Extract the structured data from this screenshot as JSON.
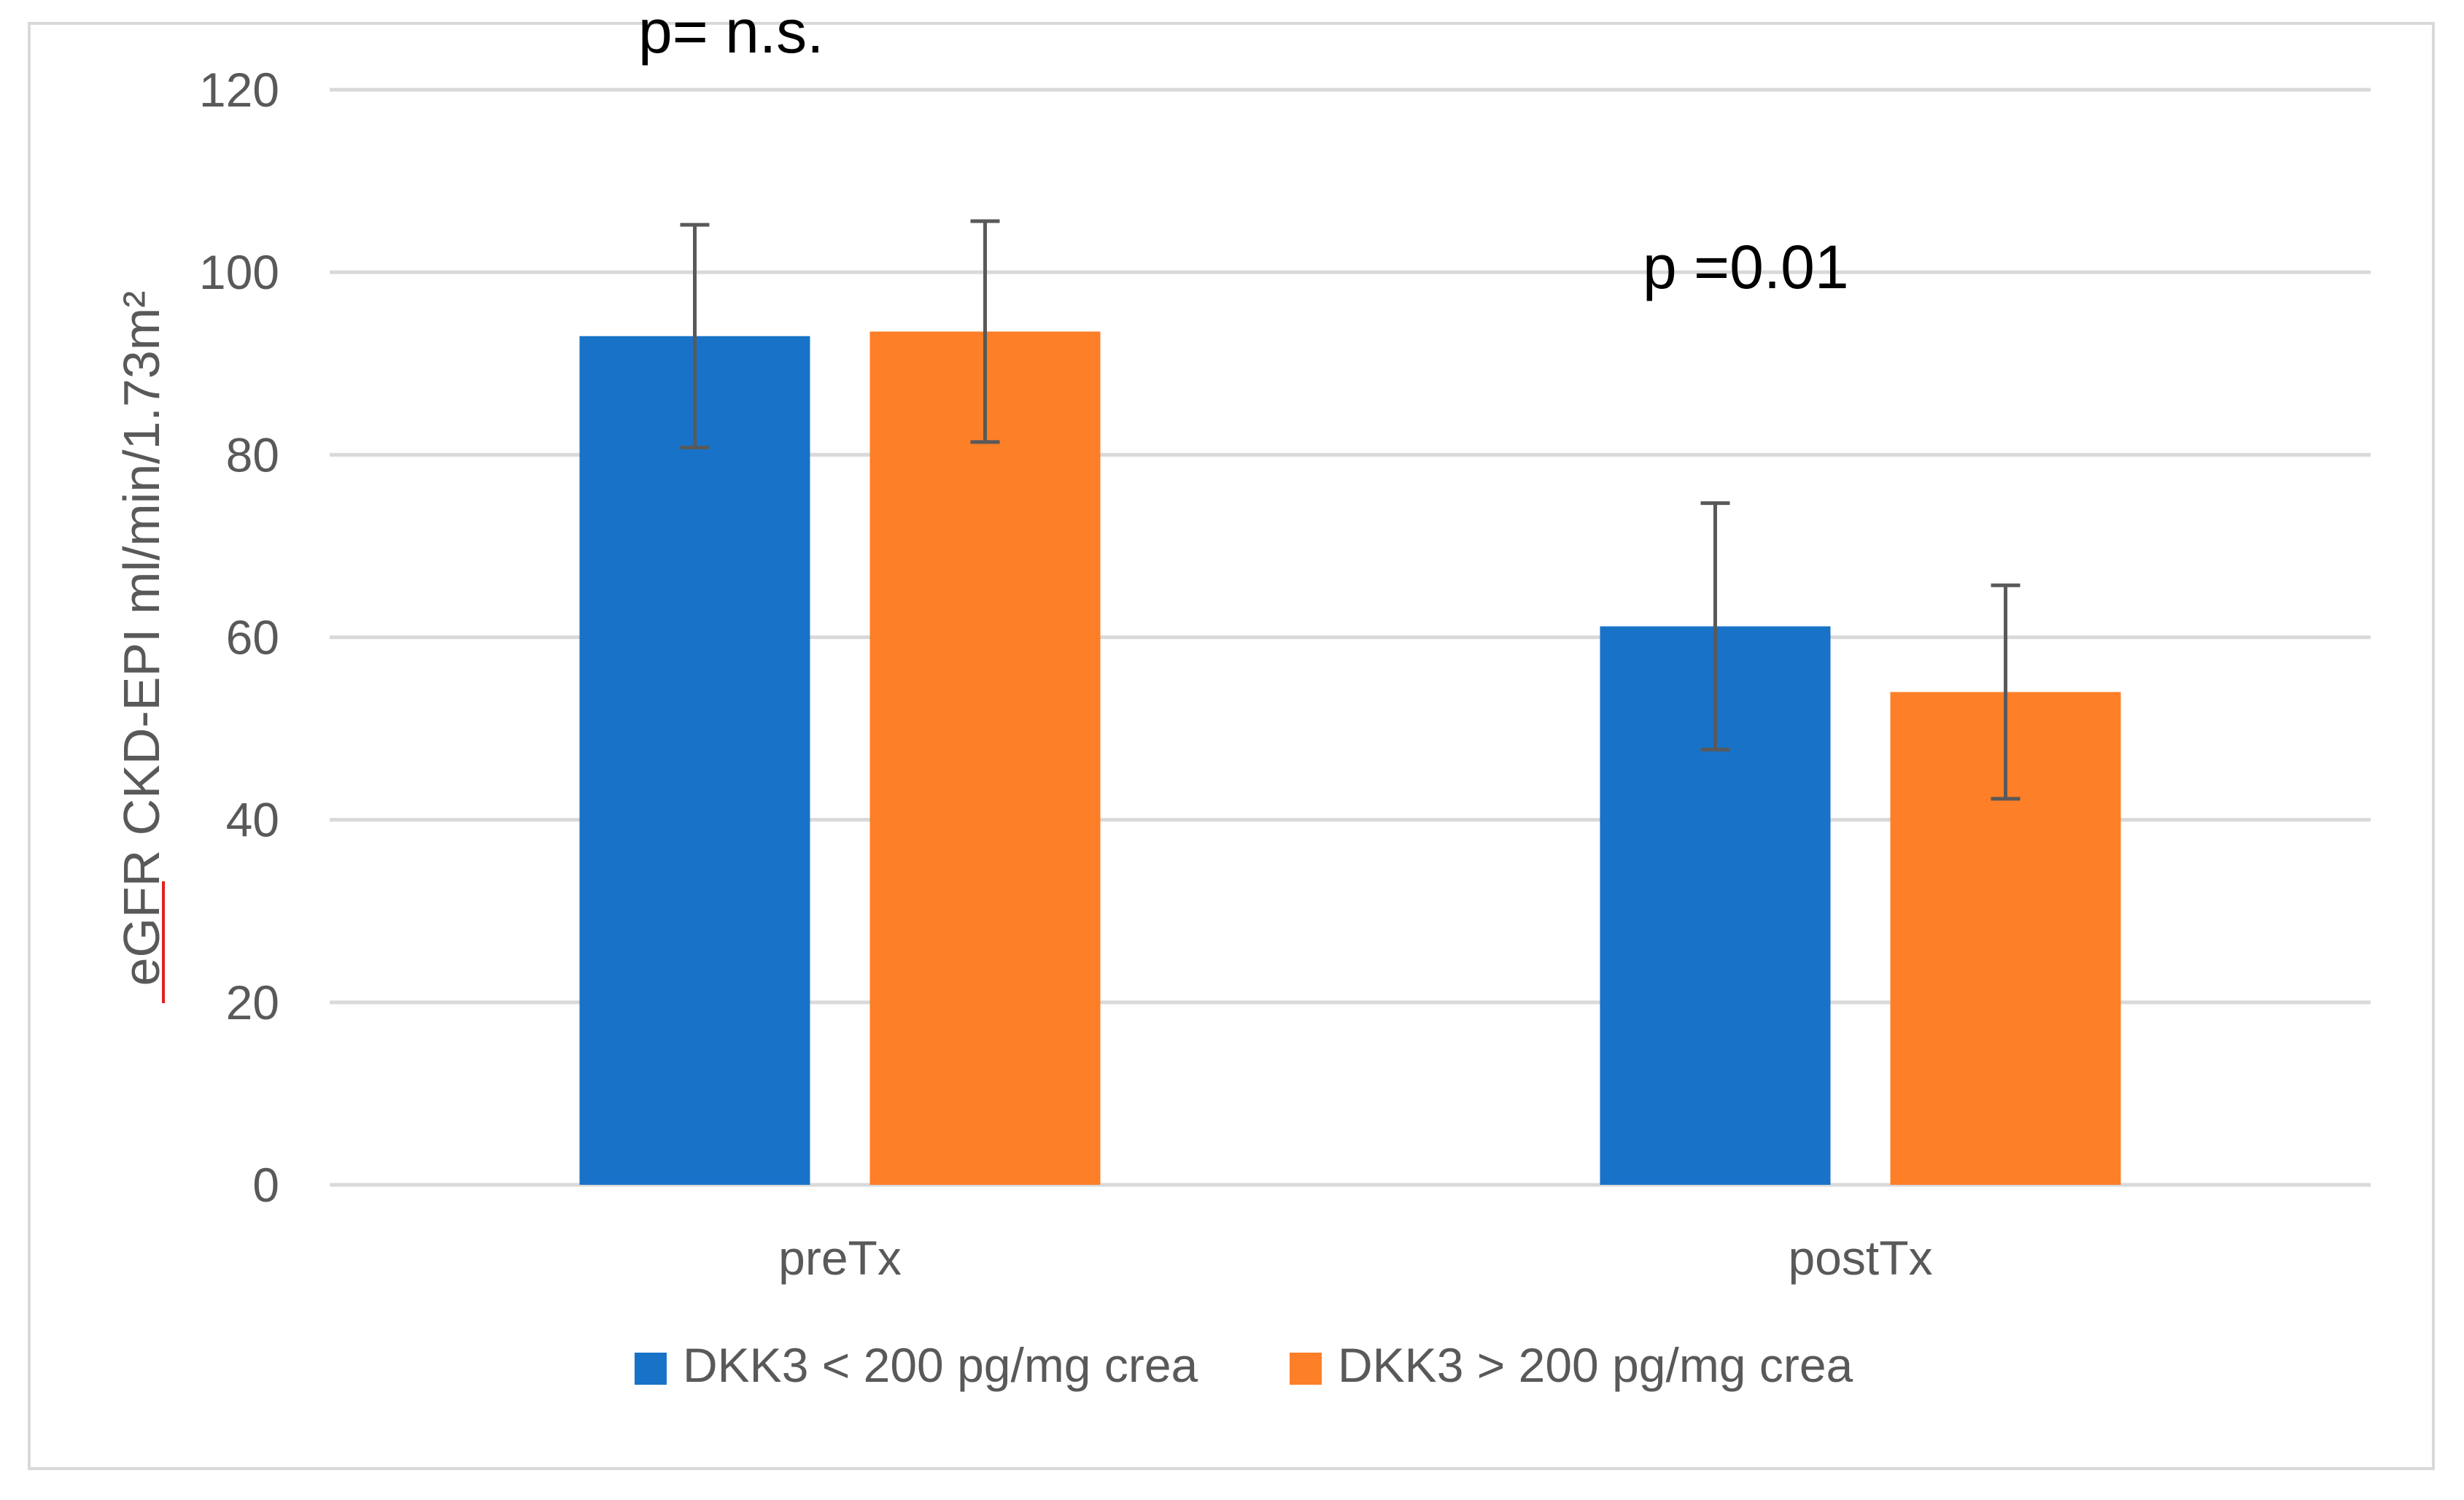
{
  "chart_data": {
    "type": "bar",
    "categories": [
      "preTx",
      "postTx"
    ],
    "series": [
      {
        "name": "DKK3 < 200 pg/mg crea",
        "values": [
          93,
          61.2
        ],
        "error": [
          12.2,
          13.5
        ],
        "color": "#1873c8"
      },
      {
        "name": "DKK3 > 200 pg/mg crea",
        "values": [
          93.5,
          54
        ],
        "error": [
          12.1,
          11.7
        ],
        "color": "#fd7f27"
      }
    ],
    "ylabel": "eGFR CKD-EPI ml/min/1.73m²",
    "ylim": [
      0,
      120
    ],
    "yticks": [
      0,
      20,
      40,
      60,
      80,
      100,
      120
    ],
    "grid": true,
    "legend": "bottom",
    "annotations": [
      "p= n.s.",
      "p =0.01"
    ]
  }
}
